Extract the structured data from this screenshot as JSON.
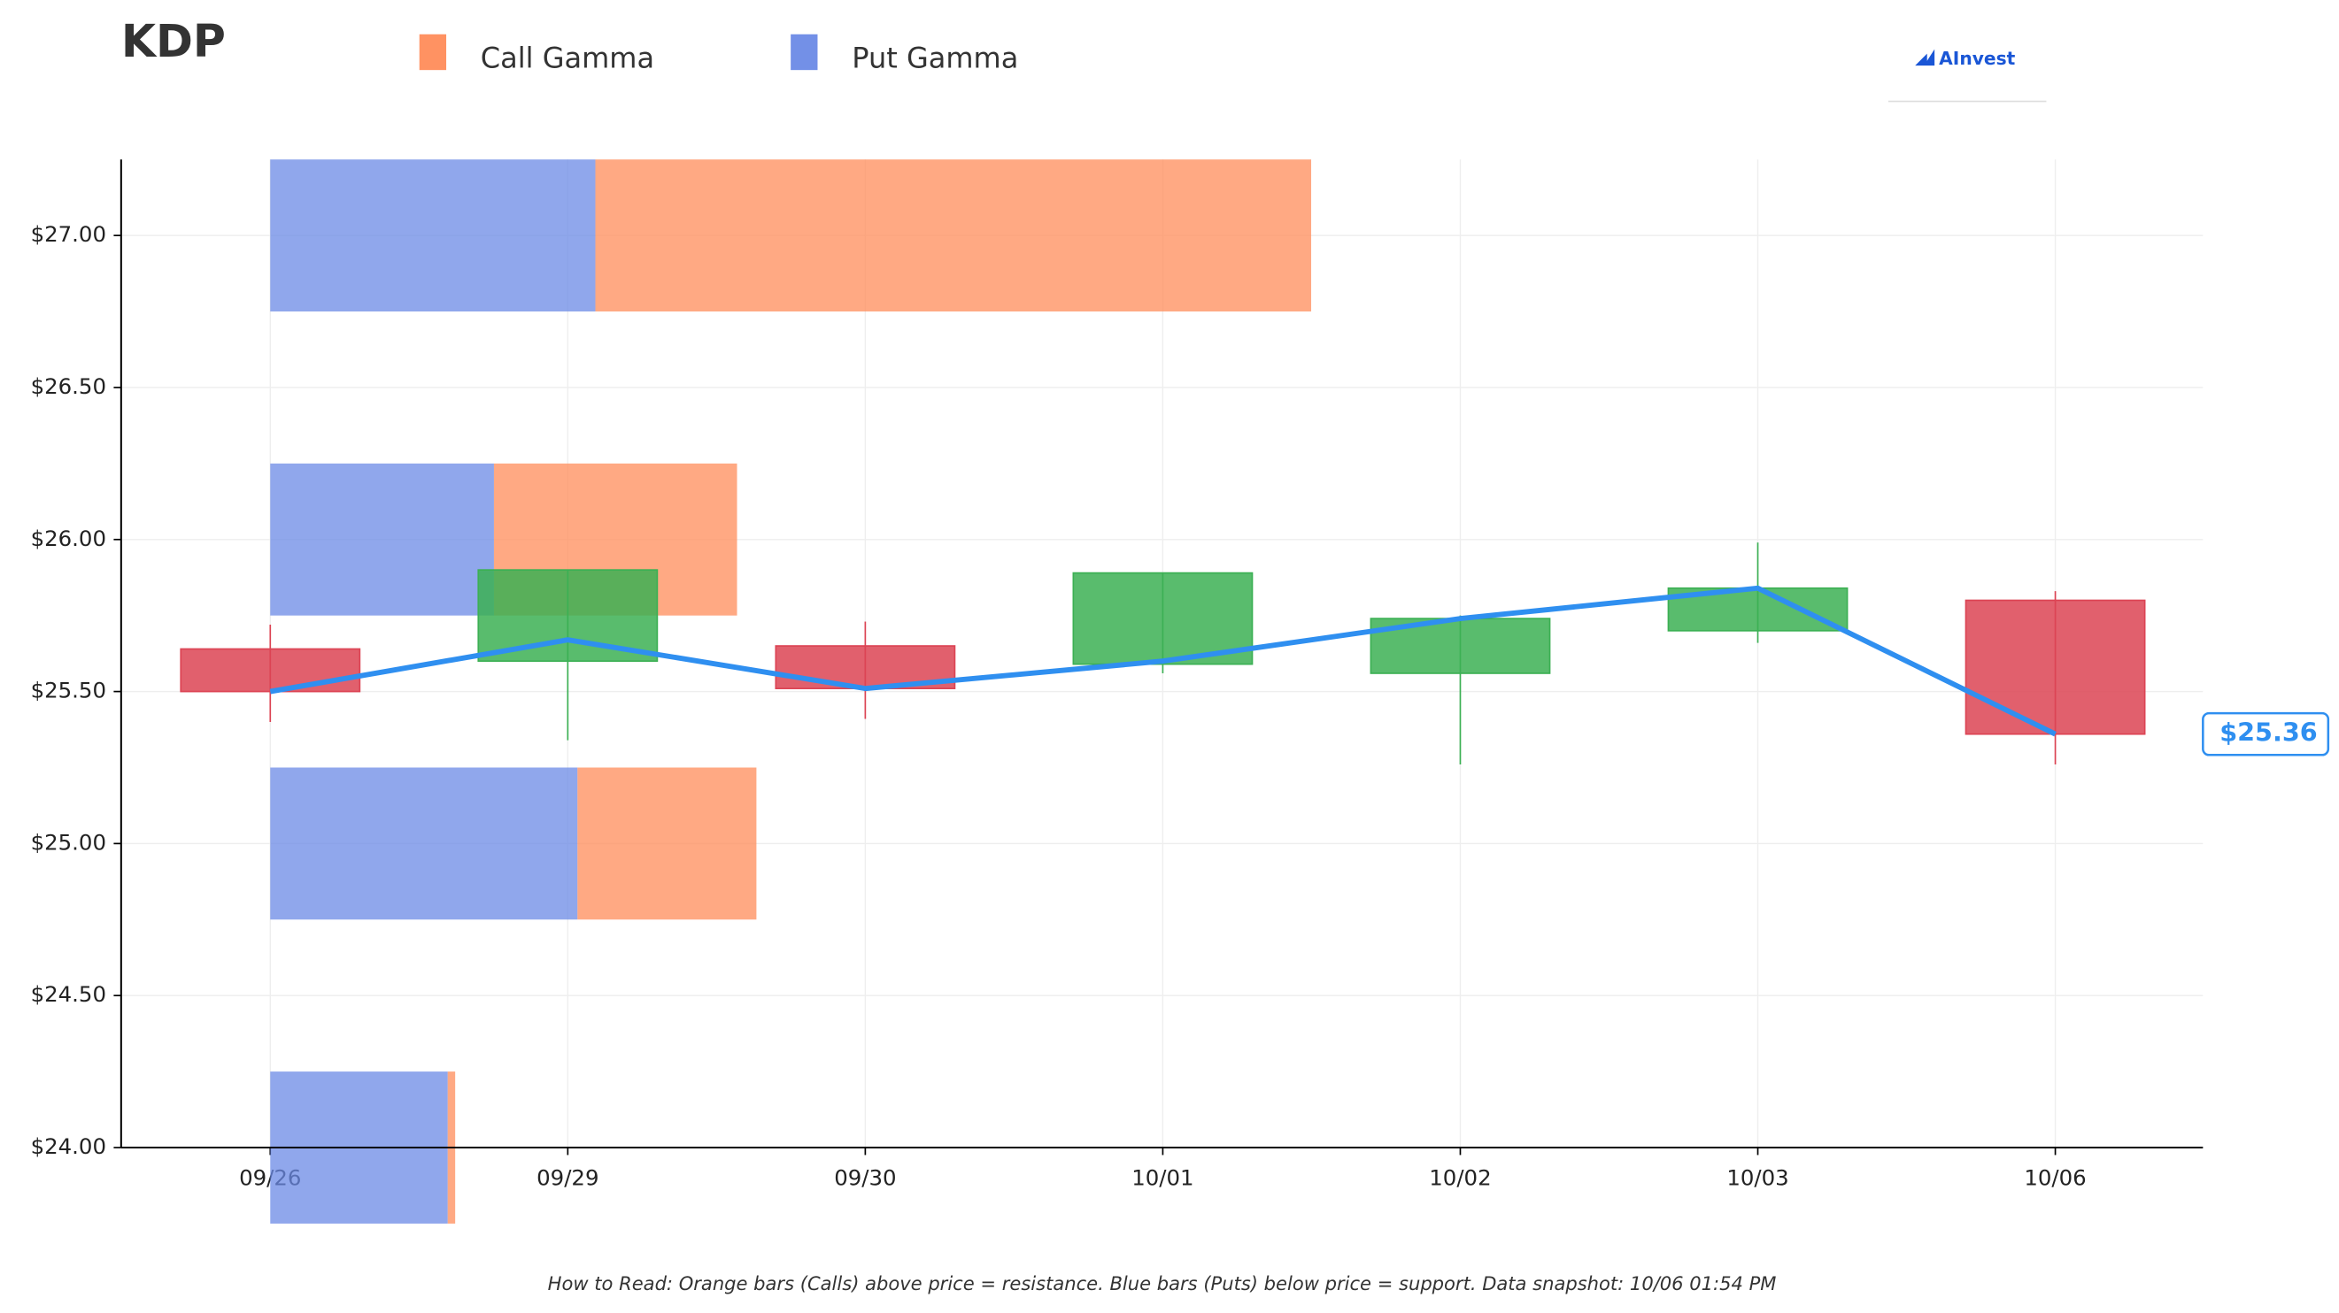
{
  "title": "KDP",
  "logo": "AInvest",
  "footnote": "How to Read: Orange bars (Calls) above price = resistance. Blue bars (Puts) below price = support. Data snapshot: 10/06 01:54 PM",
  "chart_data": {
    "type": "candlestick",
    "categories": [
      "09/26",
      "09/29",
      "09/30",
      "10/01",
      "10/02",
      "10/03",
      "10/06"
    ],
    "open": [
      25.64,
      25.6,
      25.65,
      25.59,
      25.56,
      25.7,
      25.8
    ],
    "high": [
      25.72,
      25.9,
      25.73,
      25.89,
      25.75,
      25.99,
      25.83
    ],
    "low": [
      25.4,
      25.34,
      25.41,
      25.56,
      25.26,
      25.66,
      25.26
    ],
    "close": [
      25.5,
      25.9,
      25.51,
      25.89,
      25.74,
      25.84,
      25.36
    ],
    "up_color": "#3cb054",
    "down_color": "#dc4454",
    "line": {
      "values": [
        25.5,
        25.67,
        25.51,
        25.6,
        25.74,
        25.84,
        25.36
      ],
      "color": "#2f8ff0"
    },
    "gamma": {
      "levels": [
        27,
        26,
        25,
        24
      ],
      "series": [
        {
          "name": "Call Gamma",
          "color": "#ff8c5a",
          "values": [
            4.8,
            1.63,
            1.2,
            0.05
          ]
        },
        {
          "name": "Put Gamma",
          "color": "#6b8ae6",
          "values": [
            2.18,
            1.5,
            2.06,
            1.19
          ]
        }
      ]
    },
    "ylim": [
      24,
      27.25
    ],
    "yticks": [
      {
        "value": 24,
        "label": "$24.00"
      },
      {
        "value": 24.5,
        "label": "$24.50"
      },
      {
        "value": 25,
        "label": "$25.00"
      },
      {
        "value": 25.5,
        "label": "$25.50"
      },
      {
        "value": 26,
        "label": "$26.00"
      },
      {
        "value": 26.5,
        "label": "$26.50"
      },
      {
        "value": 27,
        "label": "$27.00"
      }
    ],
    "last_price": {
      "value": 25.36,
      "label": "$25.36"
    },
    "grid": true
  }
}
